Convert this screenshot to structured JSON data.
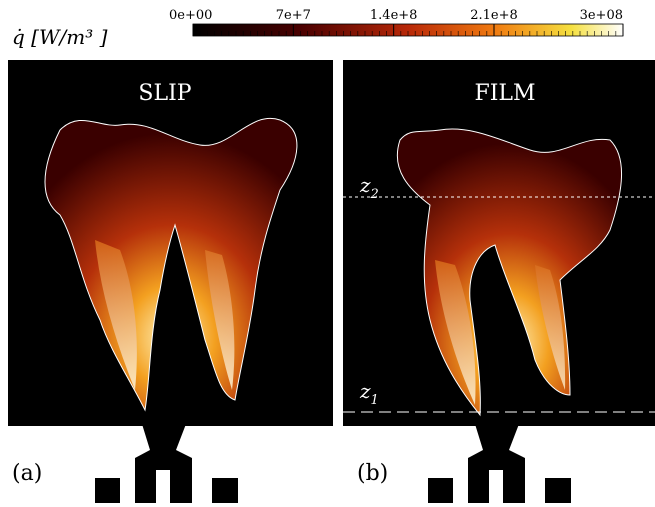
{
  "colorbar": {
    "label": "q̇  [W/m³ ]",
    "lim": [
      0,
      300000000
    ],
    "ticks": [
      {
        "value": 0,
        "label": "0e+00"
      },
      {
        "value": 70000000,
        "label": "7e+7"
      },
      {
        "value": 140000000,
        "label": "1.4e+8"
      },
      {
        "value": 210000000,
        "label": "2.1e+8"
      },
      {
        "value": 300000000,
        "label": "3e+08"
      }
    ]
  },
  "panels": [
    {
      "title": "SLIP",
      "tag": "(a)"
    },
    {
      "title": "FILM",
      "tag": "(b)",
      "markers": [
        {
          "symbol": "z",
          "subscript": "2"
        },
        {
          "symbol": "z",
          "subscript": "1"
        }
      ]
    }
  ]
}
